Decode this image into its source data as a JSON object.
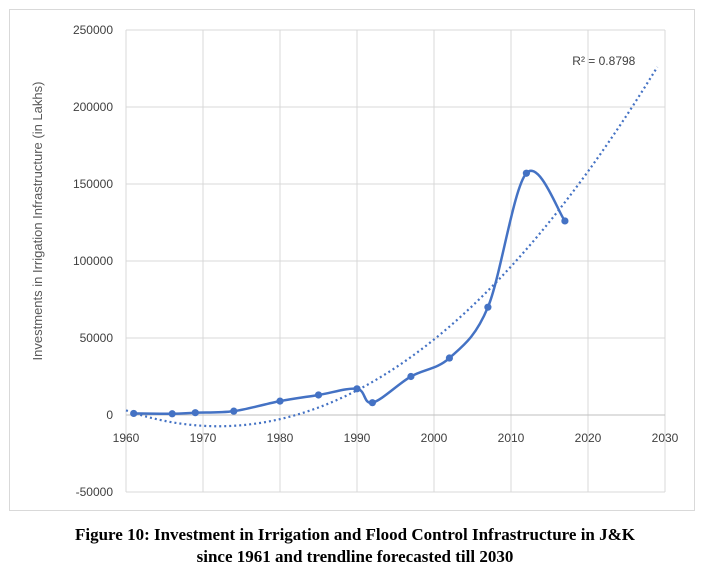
{
  "chart_data": {
    "type": "line",
    "xlabel": "",
    "ylabel": "Investments in Irrigation Infrastructure (in Lakhs)",
    "xlim": [
      1960,
      2030
    ],
    "ylim": [
      -50000,
      250000
    ],
    "x_ticks": [
      1960,
      1970,
      1980,
      1990,
      2000,
      2010,
      2020,
      2030
    ],
    "y_ticks": [
      -50000,
      0,
      50000,
      100000,
      150000,
      200000,
      250000
    ],
    "grid": true,
    "series": [
      {
        "points": [
          {
            "x": 1961,
            "y": 1000
          },
          {
            "x": 1966,
            "y": 800
          },
          {
            "x": 1969,
            "y": 1500
          },
          {
            "x": 1974,
            "y": 2500
          },
          {
            "x": 1980,
            "y": 9000
          },
          {
            "x": 1985,
            "y": 13000
          },
          {
            "x": 1990,
            "y": 17000
          },
          {
            "x": 1992,
            "y": 8000
          },
          {
            "x": 1997,
            "y": 25000
          },
          {
            "x": 2002,
            "y": 37000
          },
          {
            "x": 2007,
            "y": 70000
          },
          {
            "x": 2012,
            "y": 157000
          },
          {
            "x": 2017,
            "y": 126000
          }
        ],
        "color": "#4472c4"
      }
    ],
    "trendline": {
      "type": "polynomial",
      "x_range": [
        1960,
        2029
      ],
      "anchor_points": [
        {
          "x": 1960,
          "y": 3000
        },
        {
          "x": 1990,
          "y": 16000
        },
        {
          "x": 2029,
          "y": 226000
        }
      ],
      "r2_label": "R² = 0.8798",
      "color": "#4472c4"
    }
  },
  "caption": {
    "line1": "Figure 10: Investment in Irrigation and Flood Control Infrastructure in J&K",
    "line2": "since 1961 and trendline forecasted till 2030"
  }
}
